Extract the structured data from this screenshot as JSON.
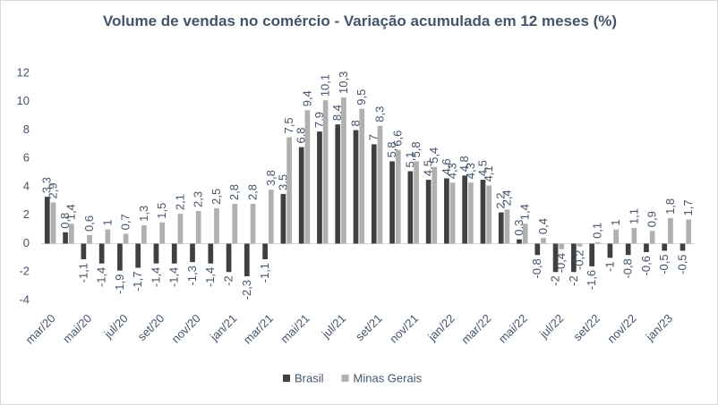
{
  "chart_data": {
    "type": "bar",
    "title": "Volume de vendas no comércio - Variação acumulada em 12 meses (%)",
    "categories": [
      "mar/20",
      null,
      "mai/20",
      null,
      "jul/20",
      null,
      "set/20",
      null,
      "nov/20",
      null,
      "jan/21",
      null,
      "mar/21",
      null,
      "mai/21",
      null,
      "jul/21",
      null,
      "set/21",
      null,
      "nov/21",
      null,
      "jan/22",
      null,
      "mar/22",
      null,
      "mai/22",
      null,
      "jul/22",
      null,
      "set/22",
      null,
      "nov/22",
      null,
      "jan/23",
      null
    ],
    "series": [
      {
        "name": "Brasil",
        "color": "#404040",
        "values": [
          3.3,
          0.8,
          -1.1,
          -1.4,
          -1.9,
          -1.7,
          -1.4,
          -1.4,
          -1.3,
          -1.4,
          -2,
          -2.3,
          -1.1,
          3.5,
          6.8,
          7.9,
          8.4,
          8,
          7,
          5.8,
          5.1,
          4.5,
          4.6,
          4.8,
          4.5,
          2.2,
          0.3,
          -0.8,
          -2,
          -2,
          -1.6,
          -1,
          -0.8,
          -0.6,
          -0.5,
          -0.5
        ],
        "value_labels": [
          "3,3",
          "0,8",
          "-1,1",
          "-1,4",
          "-1,9",
          "-1,7",
          "-1,4",
          "-1,4",
          "-1,3",
          "-1,4",
          "-2",
          "-2,3",
          "-1,1",
          "3,5",
          "6,8",
          "7,9",
          "8,4",
          "8",
          "7",
          "5,8",
          "5,1",
          "4,5",
          "4,6",
          "4,8",
          "4,5",
          "2,2",
          "0,3",
          "-0,8",
          "-2",
          "-2",
          "-1,6",
          "-1",
          "-0,8",
          "-0,6",
          "-0,5",
          "-0,5"
        ]
      },
      {
        "name": "Minas Gerais",
        "color": "#b0b0b0",
        "values": [
          2.9,
          1.4,
          0.6,
          1,
          0.7,
          1.3,
          1.5,
          2.1,
          2.3,
          2.5,
          2.8,
          2.8,
          3.8,
          7.5,
          9.4,
          10.1,
          10.3,
          9.5,
          8.3,
          6.6,
          5.8,
          5.4,
          4.3,
          4.3,
          4.1,
          2.4,
          1.4,
          0.4,
          -0.4,
          -0.2,
          0.1,
          1,
          1.1,
          0.9,
          1.8,
          1.7
        ],
        "value_labels": [
          "2,9",
          "1,4",
          "0,6",
          "1",
          "0,7",
          "1,3",
          "1,5",
          "2,1",
          "2,3",
          "2,5",
          "2,8",
          "2,8",
          "3,8",
          "7,5",
          "9,4",
          "10,1",
          "10,3",
          "9,5",
          "8,3",
          "6,6",
          "5,8",
          "5,4",
          "4,3",
          "4,3",
          "4,1",
          "2,4",
          "1,4",
          "0,4",
          "-0,4",
          "-0,2",
          "0,1",
          "1",
          "1,1",
          "0,9",
          "1,8",
          "1,7"
        ]
      }
    ],
    "ylim": [
      -4,
      12
    ],
    "yticks": [
      -4,
      -2,
      0,
      2,
      4,
      6,
      8,
      10,
      12
    ],
    "grid": false,
    "legend": "bottom"
  }
}
